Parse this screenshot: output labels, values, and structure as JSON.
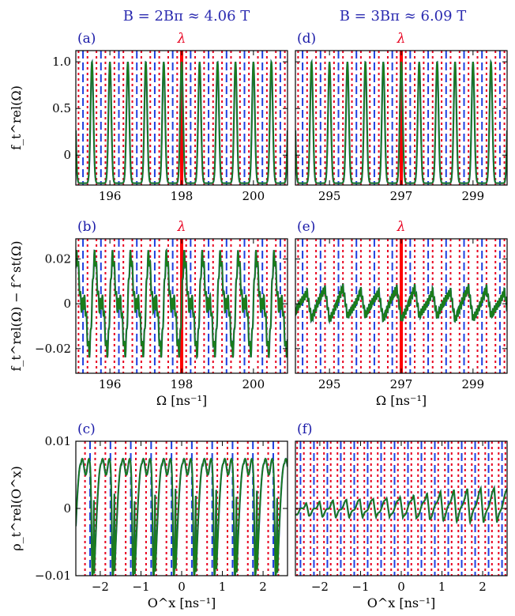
{
  "colors": {
    "signal": "#1a7d1a",
    "signal_under": "#1f3fb0",
    "blue_dash": "#1f3fe0",
    "red_dot": "#e8001f",
    "lambda_line": "#ff0000",
    "title_blue": "#2b2bb0"
  },
  "column_titles": [
    "B = 2Bπ ≈ 4.06 T",
    "B = 3Bπ ≈ 6.09 T"
  ],
  "lambda_symbol": "λ",
  "chart_data": [
    {
      "id": "a",
      "label": "(a)",
      "type": "line",
      "xlim": [
        195.05,
        200.95
      ],
      "ylim": [
        -0.32,
        1.12
      ],
      "xticks": [
        196,
        198,
        200
      ],
      "yticks": [
        0,
        0.5,
        1.0
      ],
      "ytick_labels": [
        "0",
        "0.5",
        "1.0"
      ],
      "ylabel": "f_t^rel(Ω)",
      "xlabel": "",
      "lambda_x": 198,
      "grid": "dense dashed/dotted vertical lines",
      "series": [
        {
          "kind": "peaks",
          "baseline": -0.3,
          "peak": 1.0,
          "period": 0.5,
          "phase": 0.0
        }
      ]
    },
    {
      "id": "b",
      "label": "(b)",
      "type": "line",
      "xlim": [
        195.05,
        200.95
      ],
      "ylim": [
        -0.031,
        0.029
      ],
      "xticks": [
        196,
        198,
        200
      ],
      "yticks": [
        -0.02,
        0,
        0.02
      ],
      "ytick_labels": [
        "−0.02",
        "0",
        "0.02"
      ],
      "ylabel": "f_t^rel(Ω) − f^st(Ω)",
      "xlabel": "Ω [ns⁻¹]",
      "lambda_x": 198,
      "series": [
        {
          "kind": "saw",
          "amp": 0.027,
          "period": 0.5
        }
      ]
    },
    {
      "id": "c",
      "label": "(c)",
      "type": "line",
      "xlim": [
        -2.6,
        2.6
      ],
      "ylim": [
        -0.01,
        0.01
      ],
      "xticks": [
        -2,
        -1,
        0,
        1,
        2
      ],
      "yticks": [
        -0.01,
        0,
        0.01
      ],
      "ytick_labels": [
        "−0.01",
        "0",
        "0.01"
      ],
      "ylabel": "ρ_t^rel(O^x)",
      "xlabel": "O^x [ns⁻¹]",
      "series": [
        {
          "kind": "rho_big",
          "period": 0.5
        }
      ]
    },
    {
      "id": "d",
      "label": "(d)",
      "type": "line",
      "xlim": [
        294.05,
        299.95
      ],
      "ylim": [
        -0.32,
        1.12
      ],
      "xticks": [
        295,
        297,
        299
      ],
      "yticks": [
        0,
        0.5,
        1.0
      ],
      "ytick_labels": [
        "",
        "",
        ""
      ],
      "ylabel": "",
      "xlabel": "",
      "lambda_x": 297,
      "series": [
        {
          "kind": "peaks",
          "baseline": -0.3,
          "peak": 1.0,
          "period": 0.5,
          "phase": 0.0
        }
      ]
    },
    {
      "id": "e",
      "label": "(e)",
      "type": "line",
      "xlim": [
        294.05,
        299.95
      ],
      "ylim": [
        -0.031,
        0.029
      ],
      "xticks": [
        295,
        297,
        299
      ],
      "yticks": [
        -0.02,
        0,
        0.02
      ],
      "ytick_labels": [
        "",
        "",
        ""
      ],
      "ylabel": "",
      "xlabel": "Ω [ns⁻¹]",
      "lambda_x": 297,
      "series": [
        {
          "kind": "saw_small",
          "amp": 0.007,
          "period": 0.5
        }
      ]
    },
    {
      "id": "f",
      "label": "(f)",
      "type": "line",
      "xlim": [
        -2.6,
        2.6
      ],
      "ylim": [
        -0.01,
        0.01
      ],
      "xticks": [
        -2,
        -1,
        0,
        1,
        2
      ],
      "yticks": [
        -0.01,
        0,
        0.01
      ],
      "ytick_labels": [
        "",
        "",
        ""
      ],
      "ylabel": "",
      "xlabel": "O^x [ns⁻¹]",
      "series": [
        {
          "kind": "rho_small",
          "period": 0.33
        }
      ]
    }
  ]
}
